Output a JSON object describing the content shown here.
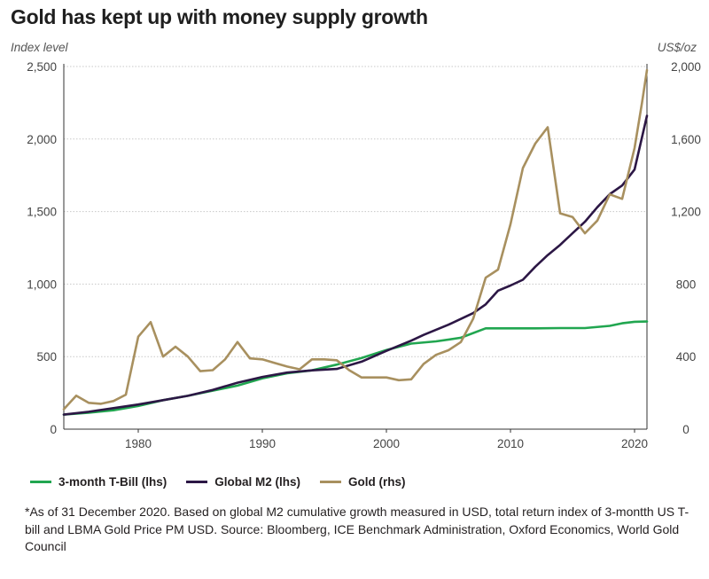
{
  "header": {
    "title": "Gold has kept up with money supply growth",
    "left_axis_title": "Index level",
    "right_axis_title": "US$/oz"
  },
  "footnote": "*As of 31 December 2020. Based on global M2 cumulative growth measured in USD, total return index of 3-montth US T-bill and LBMA Gold Price PM USD. Source: Bloomberg, ICE Benchmark Administration, Oxford Economics, World Gold Council",
  "chart_data": {
    "type": "line",
    "title": "Gold has kept up with money supply growth",
    "ylabel": "Index level",
    "y2label": "US$/oz",
    "xlim": [
      1974,
      2021
    ],
    "ylim": [
      0,
      2500
    ],
    "y2lim": [
      0,
      2000
    ],
    "x_ticks": [
      1980,
      1990,
      2000,
      2010,
      2020
    ],
    "y_ticks": [
      0,
      500,
      1000,
      1500,
      2000,
      2500
    ],
    "y_tick_labels": [
      "0",
      "500",
      "1,000",
      "1,500",
      "2,000",
      "2,500"
    ],
    "y2_ticks": [
      0,
      400,
      800,
      1200,
      1600,
      2000
    ],
    "y2_tick_labels": [
      "0",
      "400",
      "800",
      "1,200",
      "1,600",
      "2,000"
    ],
    "grid": true,
    "legend_position": "bottom",
    "series": [
      {
        "name": "3-month T-Bill (lhs)",
        "axis": "left",
        "color": "#21a650",
        "x": [
          1974,
          1976,
          1978,
          1980,
          1982,
          1984,
          1986,
          1988,
          1990,
          1992,
          1994,
          1996,
          1998,
          2000,
          2002,
          2004,
          2006,
          2008,
          2010,
          2012,
          2014,
          2016,
          2018,
          2019,
          2020,
          2021
        ],
        "values": [
          100,
          113,
          130,
          160,
          200,
          230,
          265,
          300,
          350,
          385,
          405,
          445,
          490,
          545,
          590,
          605,
          630,
          695,
          695,
          695,
          697,
          697,
          712,
          730,
          740,
          742
        ]
      },
      {
        "name": "Global M2 (lhs)",
        "axis": "left",
        "color": "#2c1745",
        "x": [
          1974,
          1976,
          1978,
          1980,
          1982,
          1984,
          1986,
          1988,
          1990,
          1992,
          1994,
          1996,
          1998,
          2000,
          2002,
          2003,
          2005,
          2007,
          2008,
          2009,
          2010,
          2011,
          2012,
          2013,
          2014,
          2015,
          2016,
          2017,
          2018,
          2019,
          2020,
          2021
        ],
        "values": [
          100,
          120,
          145,
          170,
          200,
          230,
          270,
          320,
          360,
          390,
          405,
          415,
          465,
          540,
          610,
          650,
          720,
          800,
          860,
          955,
          990,
          1030,
          1120,
          1200,
          1270,
          1350,
          1430,
          1530,
          1620,
          1680,
          1790,
          2160
        ]
      },
      {
        "name": "Gold (rhs)",
        "axis": "right",
        "color": "#a8905f",
        "x": [
          1974,
          1975,
          1976,
          1977,
          1978,
          1979,
          1980,
          1981,
          1982,
          1983,
          1984,
          1985,
          1986,
          1987,
          1988,
          1989,
          1990,
          1991,
          1992,
          1993,
          1994,
          1995,
          1996,
          1997,
          1998,
          1999,
          2000,
          2001,
          2002,
          2003,
          2004,
          2005,
          2006,
          2007,
          2008,
          2009,
          2010,
          2011,
          2012,
          2013,
          2014,
          2015,
          2016,
          2017,
          2018,
          2019,
          2020,
          2020.6,
          2021
        ],
        "values": [
          110,
          185,
          145,
          140,
          155,
          190,
          510,
          590,
          400,
          455,
          400,
          320,
          325,
          385,
          480,
          390,
          385,
          365,
          345,
          330,
          385,
          385,
          380,
          325,
          285,
          285,
          285,
          270,
          275,
          360,
          410,
          435,
          480,
          610,
          835,
          880,
          1130,
          1440,
          1575,
          1665,
          1190,
          1170,
          1080,
          1150,
          1295,
          1270,
          1550,
          1800,
          1980
        ]
      }
    ]
  }
}
